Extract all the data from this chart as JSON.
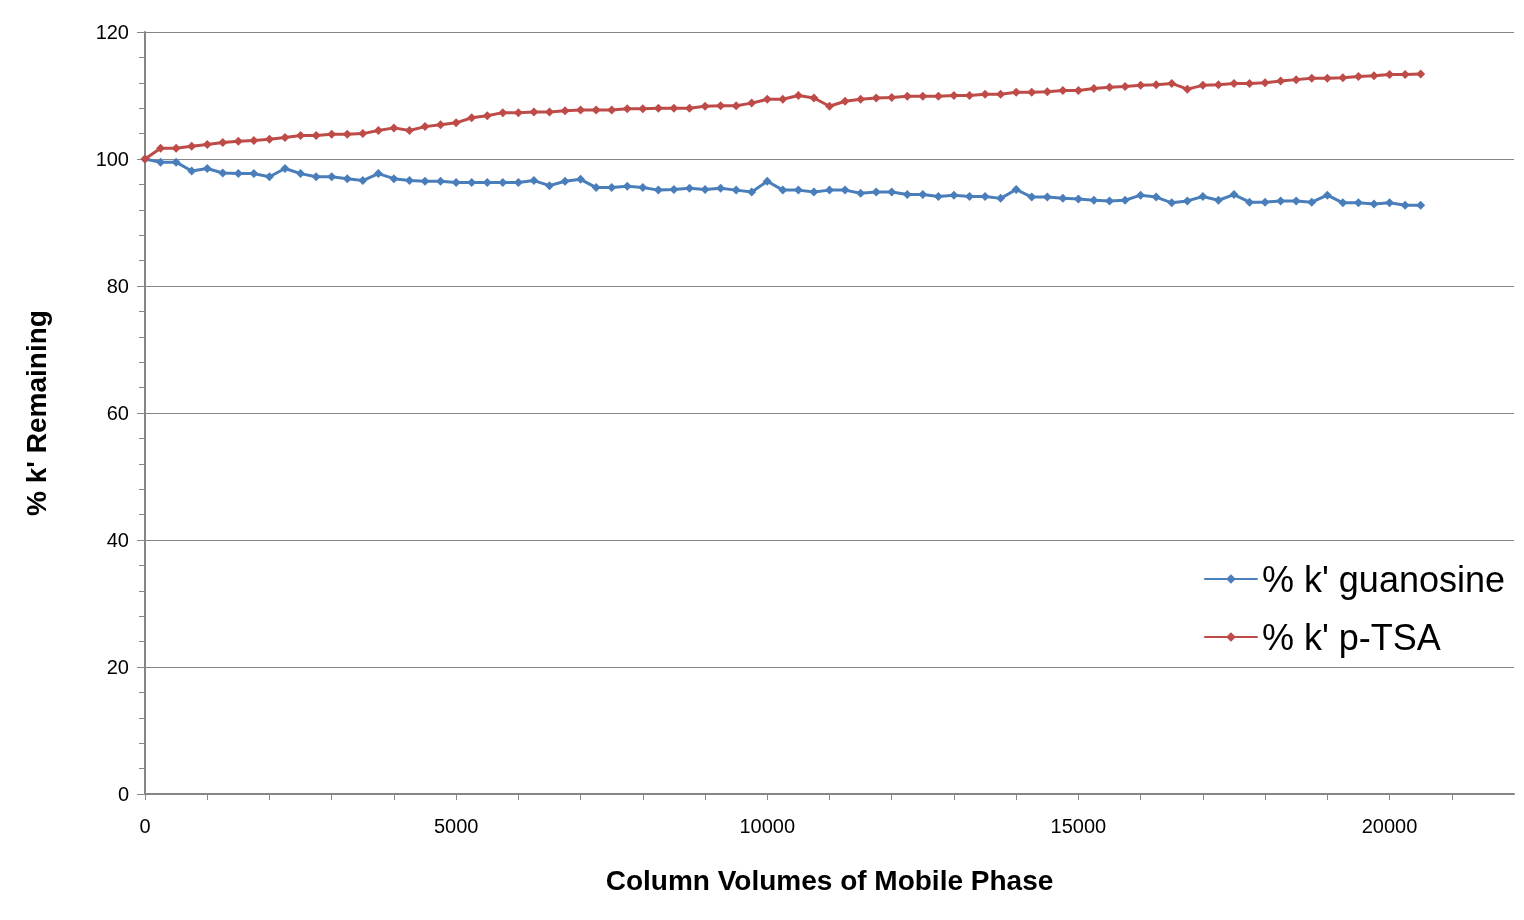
{
  "chart_data": {
    "type": "line",
    "xlabel": "Column Volumes of Mobile Phase",
    "ylabel": "% k' Remaining",
    "x": [
      0,
      250,
      500,
      750,
      1000,
      1250,
      1500,
      1750,
      2000,
      2250,
      2500,
      2750,
      3000,
      3250,
      3500,
      3750,
      4000,
      4250,
      4500,
      4750,
      5000,
      5250,
      5500,
      5750,
      6000,
      6250,
      6500,
      6750,
      7000,
      7250,
      7500,
      7750,
      8000,
      8250,
      8500,
      8750,
      9000,
      9250,
      9500,
      9750,
      10000,
      10250,
      10500,
      10750,
      11000,
      11250,
      11500,
      11750,
      12000,
      12250,
      12500,
      12750,
      13000,
      13250,
      13500,
      13750,
      14000,
      14250,
      14500,
      14750,
      15000,
      15250,
      15500,
      15750,
      16000,
      16250,
      16500,
      16750,
      17000,
      17250,
      17500,
      17750,
      18000,
      18250,
      18500,
      18750,
      19000,
      19250,
      19500,
      19750,
      20000,
      20250,
      20500
    ],
    "series": [
      {
        "name": "% k' guanosine",
        "color": "#4a7ebb",
        "values": [
          100,
          99.5,
          99.5,
          98.1,
          98.5,
          97.8,
          97.7,
          97.7,
          97.2,
          98.5,
          97.7,
          97.2,
          97.2,
          96.9,
          96.6,
          97.7,
          96.9,
          96.6,
          96.5,
          96.5,
          96.3,
          96.3,
          96.3,
          96.3,
          96.3,
          96.6,
          95.8,
          96.5,
          96.8,
          95.5,
          95.5,
          95.7,
          95.5,
          95.1,
          95.2,
          95.4,
          95.2,
          95.4,
          95.1,
          94.8,
          96.5,
          95.1,
          95.1,
          94.8,
          95.1,
          95.1,
          94.6,
          94.8,
          94.8,
          94.4,
          94.4,
          94.1,
          94.3,
          94.1,
          94.1,
          93.8,
          95.2,
          94,
          94,
          93.8,
          93.7,
          93.5,
          93.4,
          93.5,
          94.3,
          94,
          93.1,
          93.4,
          94.1,
          93.5,
          94.4,
          93.2,
          93.2,
          93.4,
          93.4,
          93.2,
          94.3,
          93.1,
          93.1,
          92.9,
          93.1,
          92.7,
          92.7
        ]
      },
      {
        "name": "% k' p-TSA",
        "color": "#be4b48",
        "values": [
          100,
          101.7,
          101.7,
          102,
          102.3,
          102.6,
          102.8,
          102.9,
          103.1,
          103.4,
          103.7,
          103.7,
          103.9,
          103.9,
          104,
          104.5,
          104.9,
          104.5,
          105.1,
          105.4,
          105.7,
          106.5,
          106.8,
          107.3,
          107.3,
          107.4,
          107.4,
          107.6,
          107.7,
          107.7,
          107.7,
          107.9,
          107.9,
          108,
          108,
          108,
          108.3,
          108.4,
          108.4,
          108.8,
          109.4,
          109.4,
          110,
          109.6,
          108.3,
          109.1,
          109.4,
          109.6,
          109.7,
          109.9,
          109.9,
          109.9,
          110,
          110,
          110.2,
          110.2,
          110.5,
          110.5,
          110.6,
          110.8,
          110.8,
          111.1,
          111.3,
          111.4,
          111.6,
          111.7,
          111.9,
          111,
          111.6,
          111.7,
          111.9,
          111.9,
          112,
          112.3,
          112.5,
          112.7,
          112.7,
          112.8,
          113,
          113.1,
          113.3,
          113.3,
          113.4
        ]
      }
    ],
    "xlim": [
      0,
      22000
    ],
    "xticks": [
      0,
      5000,
      10000,
      15000,
      20000
    ],
    "ylim": [
      0,
      120
    ],
    "yticks": [
      0,
      20,
      40,
      60,
      80,
      100,
      120
    ],
    "grid": "y",
    "legend": "right",
    "marker": "diamond",
    "line_style": "solid"
  }
}
